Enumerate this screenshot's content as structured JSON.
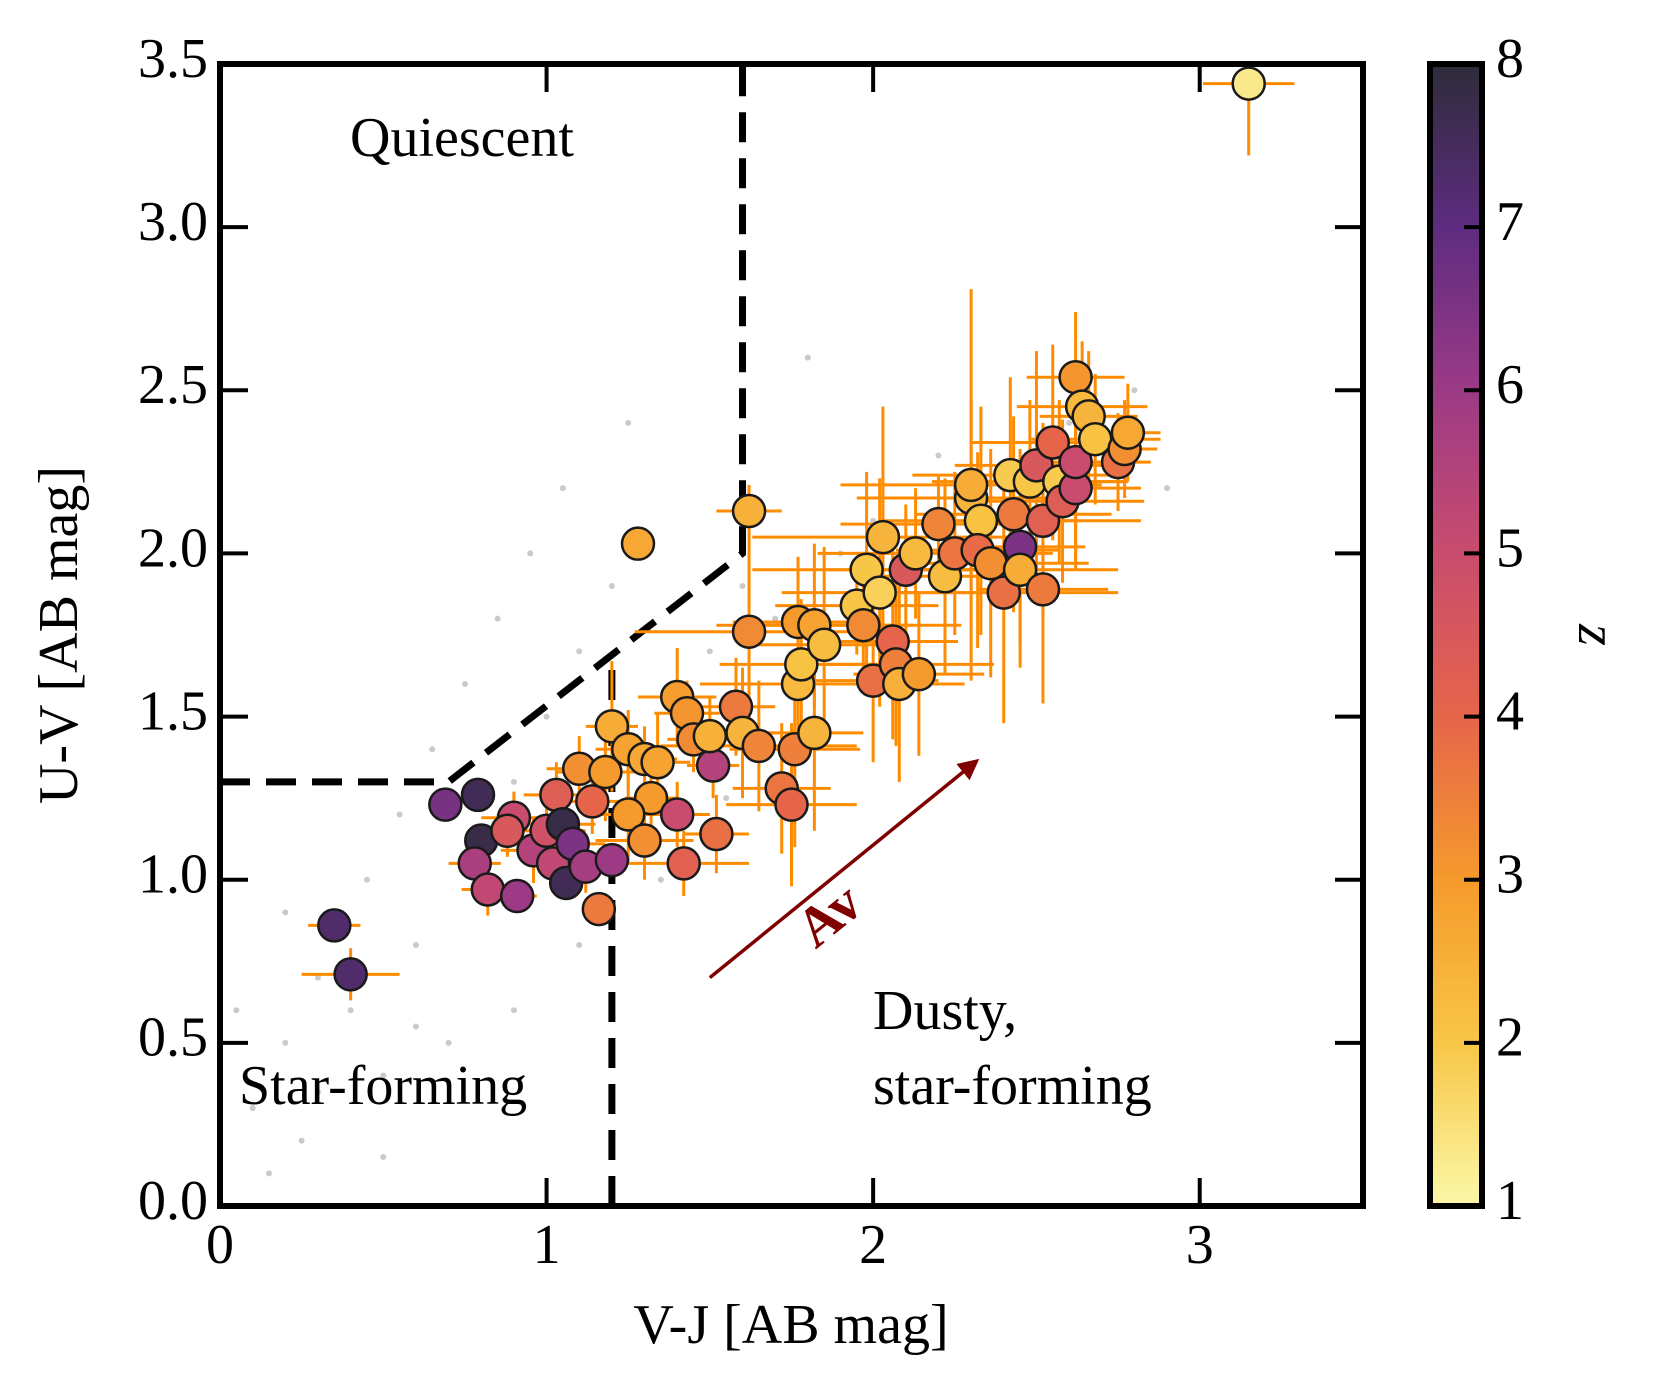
{
  "chart_data": {
    "type": "scatter",
    "xlabel": "V-J [AB mag]",
    "ylabel": "U-V [AB mag]",
    "xlim": [
      0,
      3.5
    ],
    "ylim": [
      0,
      3.5
    ],
    "xticks": [
      0,
      1,
      2,
      3
    ],
    "yticks": [
      {
        "value": 0,
        "label": "0.0"
      },
      {
        "value": 0.5,
        "label": "0.5"
      },
      {
        "value": 1,
        "label": "1.0"
      },
      {
        "value": 1.5,
        "label": "1.5"
      },
      {
        "value": 2,
        "label": "2.0"
      },
      {
        "value": 2.5,
        "label": "2.5"
      },
      {
        "value": 3,
        "label": "3.0"
      },
      {
        "value": 3.5,
        "label": "3.5"
      }
    ],
    "series": [
      {
        "color": "#bdbdbd",
        "x": [
          0.1,
          0.2,
          0.15,
          0.3,
          0.25,
          0.4,
          0.35,
          0.5,
          0.45,
          0.6,
          0.55,
          0.7,
          0.65,
          0.8,
          0.75,
          0.9,
          0.85,
          1.0,
          0.95,
          1.1,
          1.05,
          1.2,
          1.3,
          1.25,
          1.4,
          1.5,
          1.6,
          1.7,
          1.8,
          1.9,
          2.0,
          2.2,
          2.4,
          2.6,
          2.8,
          0.05,
          0.2,
          0.3,
          0.5,
          0.6,
          0.9,
          1.1,
          1.35,
          1.55,
          2.9
        ],
        "y": [
          0.3,
          0.5,
          0.1,
          0.7,
          0.2,
          0.6,
          0.9,
          0.4,
          1.0,
          0.8,
          1.2,
          0.5,
          1.4,
          1.0,
          1.6,
          1.3,
          1.8,
          1.5,
          2.0,
          1.7,
          2.2,
          1.9,
          1.4,
          2.4,
          1.6,
          1.7,
          1.9,
          1.8,
          2.6,
          2.0,
          2.1,
          2.3,
          2.1,
          2.4,
          2.5,
          0.6,
          0.9,
          0.35,
          0.15,
          0.55,
          0.6,
          0.8,
          1.0,
          1.25,
          2.2
        ]
      },
      {
        "errcolor": "#ff8c00",
        "edgecolor": "#1a1a1a",
        "x": [
          3.15,
          1.62,
          1.28,
          0.35,
          0.4,
          0.69,
          0.79,
          0.8,
          0.78,
          0.82,
          0.91,
          0.9,
          0.88,
          0.96,
          1.0,
          1.03,
          1.02,
          1.05,
          1.06,
          1.08,
          1.12,
          1.14,
          1.16,
          1.2,
          1.1,
          1.18,
          1.2,
          1.25,
          1.3,
          1.32,
          1.25,
          1.3,
          1.34,
          1.4,
          1.43,
          1.45,
          1.4,
          1.42,
          1.52,
          1.51,
          1.5,
          1.58,
          1.6,
          1.65,
          1.62,
          1.72,
          1.75,
          1.76,
          1.77,
          1.78,
          1.77,
          1.82,
          1.82,
          1.85,
          1.95,
          1.97,
          2.0,
          1.98,
          2.02,
          2.03,
          2.06,
          2.07,
          2.08,
          2.14,
          2.1,
          2.13,
          2.2,
          2.22,
          2.25,
          2.3,
          2.33,
          2.3,
          2.32,
          2.36,
          2.4,
          2.42,
          2.43,
          2.45,
          2.45,
          2.48,
          2.5,
          2.52,
          2.52,
          2.55,
          2.57,
          2.58,
          2.62,
          2.62,
          2.62,
          2.64,
          2.66,
          2.68,
          2.75,
          2.77,
          2.78
        ],
        "y": [
          3.44,
          2.13,
          2.03,
          0.86,
          0.71,
          1.23,
          1.26,
          1.12,
          1.05,
          0.97,
          0.95,
          1.19,
          1.15,
          1.09,
          1.15,
          1.26,
          1.05,
          1.17,
          0.99,
          1.11,
          1.04,
          1.24,
          0.91,
          1.06,
          1.34,
          1.33,
          1.47,
          1.4,
          1.37,
          1.25,
          1.2,
          1.12,
          1.36,
          1.56,
          1.51,
          1.43,
          1.2,
          1.05,
          1.14,
          1.35,
          1.44,
          1.53,
          1.45,
          1.41,
          1.76,
          1.28,
          1.23,
          1.4,
          1.6,
          1.66,
          1.79,
          1.78,
          1.45,
          1.72,
          1.84,
          1.78,
          1.61,
          1.95,
          1.88,
          2.05,
          1.73,
          1.66,
          1.6,
          1.63,
          1.95,
          2.0,
          2.09,
          1.93,
          2.0,
          2.17,
          2.1,
          2.21,
          2.01,
          1.97,
          1.88,
          2.24,
          2.12,
          2.02,
          1.95,
          2.22,
          2.27,
          2.1,
          1.89,
          2.34,
          2.22,
          2.16,
          2.2,
          2.28,
          2.54,
          2.45,
          2.42,
          2.35,
          2.28,
          2.32,
          2.37
        ],
        "z": [
          1.3,
          2.5,
          2.7,
          7.3,
          7.3,
          6.6,
          7.6,
          7.8,
          5.7,
          5.2,
          6.0,
          5.0,
          4.5,
          5.5,
          4.8,
          4.3,
          5.2,
          7.8,
          7.6,
          6.5,
          5.8,
          4.0,
          3.6,
          6.0,
          3.2,
          3.0,
          2.6,
          2.8,
          2.7,
          3.0,
          3.0,
          3.2,
          2.8,
          2.9,
          3.1,
          3.3,
          5.0,
          4.2,
          3.8,
          5.5,
          2.5,
          3.6,
          2.4,
          3.4,
          3.3,
          3.7,
          4.0,
          3.5,
          2.3,
          2.1,
          3.0,
          2.8,
          2.4,
          2.2,
          2.0,
          3.3,
          3.8,
          2.0,
          1.8,
          2.4,
          4.0,
          3.5,
          2.5,
          3.0,
          4.5,
          2.3,
          3.4,
          2.2,
          3.7,
          2.4,
          2.1,
          2.6,
          3.9,
          3.2,
          3.8,
          1.9,
          3.6,
          6.5,
          2.6,
          2.0,
          4.5,
          4.2,
          3.6,
          4.0,
          1.9,
          4.3,
          5.0,
          5.0,
          3.1,
          2.3,
          2.4,
          2.1,
          3.8,
          3.2,
          2.7
        ],
        "xerr": [
          0.14,
          0.1,
          0.05,
          0.08,
          0.15,
          0.04,
          0.05,
          0.05,
          0.08,
          0.08,
          0.06,
          0.1,
          0.08,
          0.1,
          0.12,
          0.1,
          0.08,
          0.1,
          0.05,
          0.1,
          0.08,
          0.12,
          0.04,
          0.05,
          0.1,
          0.15,
          0.08,
          0.1,
          0.1,
          0.08,
          0.1,
          0.15,
          0.1,
          0.12,
          0.1,
          0.08,
          0.1,
          0.2,
          0.1,
          0.08,
          0.1,
          0.12,
          0.1,
          0.3,
          0.35,
          0.15,
          0.2,
          0.2,
          0.3,
          0.25,
          0.2,
          0.3,
          0.15,
          0.2,
          0.25,
          0.3,
          0.2,
          0.35,
          0.3,
          0.4,
          0.2,
          0.3,
          0.2,
          0.2,
          0.25,
          0.3,
          0.3,
          0.25,
          0.3,
          0.35,
          0.3,
          0.4,
          0.25,
          0.3,
          0.35,
          0.3,
          0.3,
          0.2,
          0.3,
          0.3,
          0.25,
          0.3,
          0.2,
          0.25,
          0.2,
          0.25,
          0.2,
          0.2,
          0.15,
          0.2,
          0.15,
          0.2,
          0.1,
          0.1,
          0.1
        ],
        "yerr": [
          0.22,
          0.08,
          0.05,
          0.05,
          0.08,
          0.04,
          0.05,
          0.05,
          0.08,
          0.08,
          0.05,
          0.08,
          0.08,
          0.1,
          0.1,
          0.1,
          0.08,
          0.1,
          0.05,
          0.1,
          0.08,
          0.1,
          0.05,
          0.05,
          0.1,
          0.15,
          0.2,
          0.12,
          0.1,
          0.1,
          0.15,
          0.12,
          0.15,
          0.15,
          0.1,
          0.1,
          0.1,
          0.1,
          0.12,
          0.1,
          0.12,
          0.15,
          0.2,
          0.2,
          0.3,
          0.2,
          0.25,
          0.3,
          0.25,
          0.2,
          0.2,
          0.25,
          0.3,
          0.3,
          0.15,
          0.2,
          0.25,
          0.3,
          0.35,
          0.4,
          0.3,
          0.25,
          0.3,
          0.25,
          0.2,
          0.2,
          0.15,
          0.3,
          0.25,
          0.3,
          0.35,
          0.6,
          0.3,
          0.35,
          0.4,
          0.3,
          0.3,
          0.3,
          0.3,
          0.25,
          0.35,
          0.3,
          0.35,
          0.3,
          0.25,
          0.25,
          0.25,
          0.3,
          0.2,
          0.2,
          0.2,
          0.2,
          0.15,
          0.15,
          0.15
        ]
      }
    ],
    "colorbar": {
      "label": "z",
      "lim": [
        1,
        8
      ],
      "ticks": [
        1,
        2,
        3,
        4,
        5,
        6,
        7,
        8
      ],
      "cmap": [
        "#fbf8a8",
        "#f8c646",
        "#f59a2c",
        "#e6654a",
        "#c94c6e",
        "#9c3a86",
        "#5e2c80",
        "#2e2c3a"
      ]
    },
    "lines": [
      {
        "color": "#000000",
        "x": [
          0,
          0.7,
          1.6,
          1.6
        ],
        "y": [
          1.3,
          1.3,
          2.0,
          3.5
        ]
      },
      {
        "color": "#000000",
        "x": [
          1.2,
          1.2
        ],
        "y": [
          0,
          1.69
        ]
      }
    ],
    "arrow": {
      "label": "Av",
      "color": "#800000",
      "x": [
        1.5,
        2.3
      ],
      "y": [
        0.7,
        1.35
      ]
    },
    "annotations": [
      "Quiescent",
      "Star-forming",
      "Dusty,",
      "star-forming"
    ]
  }
}
